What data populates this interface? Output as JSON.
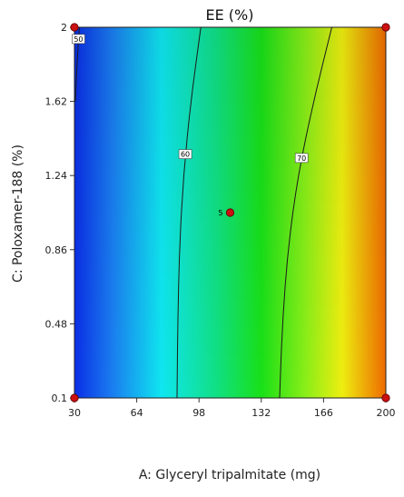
{
  "chart_data": {
    "type": "contour",
    "title": "EE (%)",
    "xlabel": "A: Glyceryl tripalmitate (mg)",
    "ylabel": "C: Poloxamer-188 (%)",
    "xlim": [
      30,
      200
    ],
    "ylim": [
      0.1,
      2
    ],
    "x_ticks": [
      "30",
      "64",
      "98",
      "132",
      "166",
      "200"
    ],
    "y_ticks": [
      "0.1",
      "0.48",
      "0.86",
      "1.24",
      "1.62",
      "2"
    ],
    "color_scale": {
      "low": "#0a2ee6",
      "mid": "#10e020",
      "high": "#ee6a00"
    },
    "contours": [
      {
        "level": 50,
        "label": "50",
        "points": [
          [
            30.5,
            1.62
          ],
          [
            31.3,
            1.8
          ],
          [
            32.7,
            2.0
          ]
        ],
        "label_at": [
          32.2,
          1.94
        ]
      },
      {
        "level": 60,
        "label": "60",
        "points": [
          [
            86,
            0.1
          ],
          [
            86.4,
            0.48
          ],
          [
            87.3,
            0.86
          ],
          [
            89.5,
            1.24
          ],
          [
            93.5,
            1.62
          ],
          [
            99,
            2.0
          ]
        ],
        "label_at": [
          90.5,
          1.35
        ]
      },
      {
        "level": 70,
        "label": "70",
        "points": [
          [
            142,
            0.1
          ],
          [
            143.5,
            0.48
          ],
          [
            146.5,
            0.86
          ],
          [
            152,
            1.24
          ],
          [
            160.5,
            1.62
          ],
          [
            170.5,
            2.0
          ]
        ],
        "label_at": [
          154,
          1.33
        ]
      }
    ],
    "design_points": [
      {
        "x": 30,
        "y": 0.1,
        "label": ""
      },
      {
        "x": 30,
        "y": 2,
        "label": ""
      },
      {
        "x": 200,
        "y": 0.1,
        "label": ""
      },
      {
        "x": 200,
        "y": 2,
        "label": ""
      },
      {
        "x": 115,
        "y": 1.05,
        "label": "5"
      }
    ]
  }
}
